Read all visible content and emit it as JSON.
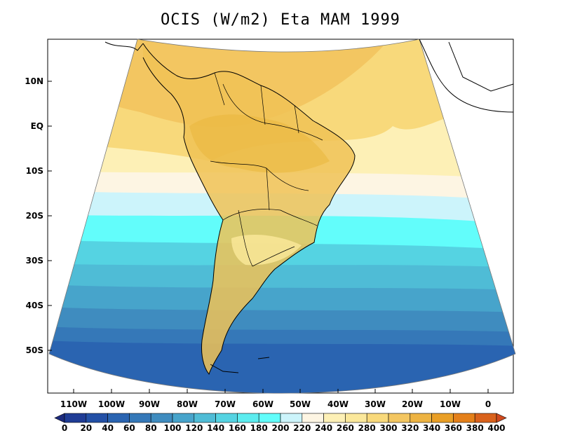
{
  "title": "OCIS (W/m2) Eta MAM 1999",
  "map": {
    "lat_labels": [
      "10N",
      "EQ",
      "10S",
      "20S",
      "30S",
      "40S",
      "50S"
    ],
    "lat_values": [
      10,
      0,
      -10,
      -20,
      -30,
      -40,
      -50
    ],
    "lon_labels": [
      "110W",
      "100W",
      "90W",
      "80W",
      "70W",
      "60W",
      "50W",
      "40W",
      "30W",
      "20W",
      "10W",
      "0"
    ],
    "lon_values": [
      -110,
      -100,
      -90,
      -80,
      -70,
      -60,
      -50,
      -40,
      -30,
      -20,
      -10,
      0
    ]
  },
  "colorbar": {
    "levels": [
      "0",
      "20",
      "40",
      "60",
      "80",
      "100",
      "120",
      "140",
      "160",
      "180",
      "200",
      "220",
      "240",
      "260",
      "280",
      "300",
      "320",
      "340",
      "360",
      "380",
      "400"
    ],
    "colors": [
      "#1d2b7e",
      "#1f3c95",
      "#2350a6",
      "#2a64b1",
      "#3578b8",
      "#3f8cbf",
      "#47a4cb",
      "#4fbcd6",
      "#55d3e2",
      "#5cecef",
      "#62fdfb",
      "#ccf4fb",
      "#fdf5e3",
      "#fdf0b6",
      "#fbe89b",
      "#f8d97b",
      "#f3c661",
      "#edb342",
      "#e99f26",
      "#e4801a",
      "#d9621c",
      "#d04a1e"
    ]
  }
}
